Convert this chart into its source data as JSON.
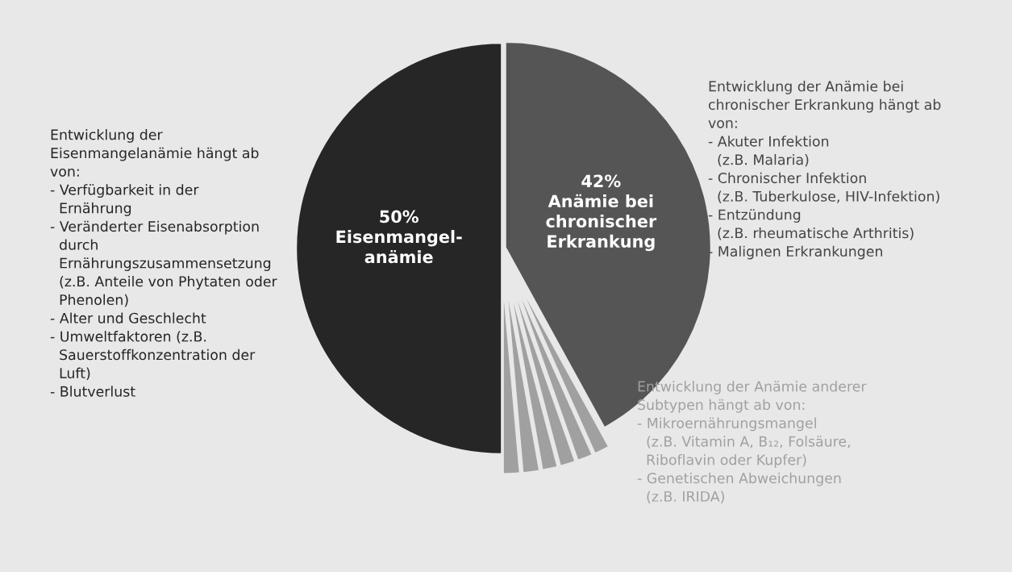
{
  "chart_data": {
    "type": "pie",
    "categories": [
      "Anämie bei\nchronischer\nErkrankung",
      null,
      null,
      null,
      null,
      null,
      null,
      "Eisenmangel-\nanämie"
    ],
    "values": [
      42,
      1.3,
      1.3,
      1.3,
      1.3,
      1.4,
      1.4,
      50
    ],
    "value_labels": [
      "42%",
      null,
      null,
      null,
      null,
      null,
      null,
      "50%"
    ],
    "colors": [
      "#555555",
      "#a0a0a0",
      "#a0a0a0",
      "#a0a0a0",
      "#a0a0a0",
      "#a0a0a0",
      "#a0a0a0",
      "#262626"
    ],
    "annotations": [
      "Entwicklung der\nEisenmangelanämie hängt ab\nvon:\n- Verfügbarkeit in der\n  Ernährung\n- Veränderter Eisenabsorption\n  durch\n  Ernährungszusammensetzung\n  (z.B. Anteile von Phytaten oder\n  Phenolen)\n- Alter und Geschlecht\n- Umweltfaktoren (z.B.\n  Sauerstoffkonzentration der\n  Luft)\n- Blutverlust",
      "Entwicklung der Anämie bei\nchronischer Erkrankung hängt ab\nvon:\n- Akuter Infektion\n  (z.B. Malaria)\n- Chronischer Infektion\n  (z.B. Tuberkulose, HIV-Infektion)\n- Entzündung\n  (z.B. rheumatische Arthritis)\n- Malignen Erkrankungen",
      "Entwicklung der Anämie anderer\nSubtypen hängt ab von:\n- Mikroernährungsmangel\n  (z.B. Vitamin A, B₁₂, Folsäure,\n  Riboflavin oder Kupfer)\n- Genetischen Abweichungen\n  (z.B. IRIDA)"
    ]
  }
}
